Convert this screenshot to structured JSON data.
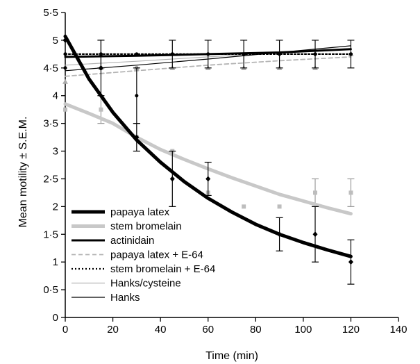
{
  "chart_data": {
    "type": "line",
    "xlabel": "Time (min)",
    "ylabel": "Mean motility ± S.E.M.",
    "xlim": [
      0,
      140
    ],
    "ylim": [
      0,
      5.5
    ],
    "x_ticks": [
      0,
      20,
      40,
      60,
      80,
      100,
      120,
      140
    ],
    "y_ticks": [
      0,
      0.5,
      1,
      1.5,
      2,
      2.5,
      3,
      3.5,
      4,
      4.5,
      5,
      5.5
    ],
    "y_tick_labels": [
      "0",
      "0·5",
      "1",
      "1·5",
      "2",
      "2·5",
      "3",
      "3·5",
      "4",
      "4·5",
      "5",
      "5·5"
    ],
    "x_tick_labels": [
      "0",
      "20",
      "40",
      "60",
      "80",
      "100",
      "120",
      "140"
    ],
    "grid": false,
    "legend_position": "bottom-left",
    "series": [
      {
        "name": "papaya latex",
        "color": "#000000",
        "style": "thick",
        "fit": [
          [
            0,
            5.07
          ],
          [
            10,
            4.3
          ],
          [
            20,
            3.7
          ],
          [
            30,
            3.2
          ],
          [
            40,
            2.8
          ],
          [
            50,
            2.45
          ],
          [
            60,
            2.15
          ],
          [
            70,
            1.9
          ],
          [
            80,
            1.68
          ],
          [
            90,
            1.5
          ],
          [
            100,
            1.35
          ],
          [
            110,
            1.22
          ],
          [
            120,
            1.1
          ]
        ],
        "points": [
          {
            "x": 0,
            "y": 5.0
          },
          {
            "x": 15,
            "y": 4.5,
            "err": 0.5
          },
          {
            "x": 30,
            "y": 3.25,
            "err": 0.25
          },
          {
            "x": 45,
            "y": 2.5,
            "err": 0.5
          },
          {
            "x": 60,
            "y": 2.5,
            "err": 0.3
          },
          {
            "x": 90,
            "y": 1.5,
            "err": 0.3
          },
          {
            "x": 105,
            "y": 1.5,
            "err": 0.5
          },
          {
            "x": 120,
            "y": 1.0,
            "err": 0.4
          }
        ]
      },
      {
        "name": "stem bromelain",
        "color": "#c8c8c8",
        "style": "thick",
        "fit": [
          [
            0,
            3.85
          ],
          [
            10,
            3.68
          ],
          [
            20,
            3.5
          ],
          [
            30,
            3.25
          ],
          [
            40,
            3.03
          ],
          [
            50,
            2.85
          ],
          [
            60,
            2.68
          ],
          [
            70,
            2.52
          ],
          [
            80,
            2.37
          ],
          [
            90,
            2.22
          ],
          [
            100,
            2.1
          ],
          [
            110,
            1.98
          ],
          [
            120,
            1.87
          ]
        ],
        "points": [
          {
            "x": 0,
            "y": 3.75
          },
          {
            "x": 15,
            "y": 3.75,
            "err": 0.25
          },
          {
            "x": 30,
            "y": 3.25,
            "err": 0.25
          },
          {
            "x": 45,
            "y": 3.0
          },
          {
            "x": 60,
            "y": 2.25
          },
          {
            "x": 75,
            "y": 2.0
          },
          {
            "x": 90,
            "y": 2.0
          },
          {
            "x": 105,
            "y": 2.25,
            "err": 0.25
          },
          {
            "x": 120,
            "y": 2.25,
            "err": 0.25
          }
        ]
      },
      {
        "name": "actinidain",
        "color": "#000000",
        "style": "medium",
        "fit": [
          [
            0,
            4.7
          ],
          [
            30,
            4.72
          ],
          [
            60,
            4.75
          ],
          [
            90,
            4.78
          ],
          [
            120,
            4.84
          ]
        ],
        "points": [
          {
            "x": 0,
            "y": 4.75
          },
          {
            "x": 15,
            "y": 4.75,
            "err": 0.25
          },
          {
            "x": 30,
            "y": 4.0,
            "err": 0.5
          },
          {
            "x": 45,
            "y": 4.75,
            "err": 0.25
          },
          {
            "x": 60,
            "y": 4.75,
            "err": 0.25
          },
          {
            "x": 75,
            "y": 4.75,
            "err": 0.25
          },
          {
            "x": 90,
            "y": 4.75,
            "err": 0.25
          },
          {
            "x": 105,
            "y": 4.75,
            "err": 0.25
          },
          {
            "x": 120,
            "y": 4.75,
            "err": 0.25
          }
        ]
      },
      {
        "name": "papaya latex + E-64",
        "color": "#b4b4b4",
        "style": "dashed",
        "fit": [
          [
            0,
            4.35
          ],
          [
            30,
            4.45
          ],
          [
            60,
            4.55
          ],
          [
            90,
            4.63
          ],
          [
            120,
            4.7
          ]
        ],
        "points": [
          {
            "x": 0,
            "y": 4.25
          },
          {
            "x": 15,
            "y": 4.5
          },
          {
            "x": 30,
            "y": 4.5
          },
          {
            "x": 45,
            "y": 4.5
          },
          {
            "x": 60,
            "y": 4.5
          },
          {
            "x": 75,
            "y": 4.5
          },
          {
            "x": 90,
            "y": 4.5
          },
          {
            "x": 105,
            "y": 4.5
          },
          {
            "x": 120,
            "y": 4.75
          }
        ]
      },
      {
        "name": "stem bromelain + E-64",
        "color": "#000000",
        "style": "dotted",
        "fit": [
          [
            0,
            4.75
          ],
          [
            30,
            4.75
          ],
          [
            60,
            4.75
          ],
          [
            90,
            4.75
          ],
          [
            120,
            4.75
          ]
        ],
        "points": [
          {
            "x": 0,
            "y": 4.75
          },
          {
            "x": 15,
            "y": 4.75
          },
          {
            "x": 30,
            "y": 4.75
          },
          {
            "x": 45,
            "y": 4.75
          },
          {
            "x": 60,
            "y": 4.75
          },
          {
            "x": 75,
            "y": 4.75
          },
          {
            "x": 90,
            "y": 4.75
          },
          {
            "x": 105,
            "y": 4.75
          },
          {
            "x": 120,
            "y": 4.75
          }
        ]
      },
      {
        "name": "Hanks/cysteine",
        "color": "#b4b4b4",
        "style": "thin",
        "fit": [
          [
            0,
            4.55
          ],
          [
            30,
            4.62
          ],
          [
            60,
            4.7
          ],
          [
            90,
            4.77
          ],
          [
            120,
            4.85
          ]
        ],
        "points": [
          {
            "x": 0,
            "y": 4.5
          },
          {
            "x": 15,
            "y": 4.75
          },
          {
            "x": 30,
            "y": 4.75
          },
          {
            "x": 45,
            "y": 4.75
          },
          {
            "x": 60,
            "y": 4.75
          },
          {
            "x": 75,
            "y": 4.75
          },
          {
            "x": 90,
            "y": 4.75
          },
          {
            "x": 105,
            "y": 4.75
          },
          {
            "x": 120,
            "y": 4.75
          }
        ]
      },
      {
        "name": "Hanks",
        "color": "#000000",
        "style": "thin",
        "fit": [
          [
            0,
            4.45
          ],
          [
            30,
            4.55
          ],
          [
            60,
            4.66
          ],
          [
            90,
            4.78
          ],
          [
            120,
            4.9
          ]
        ],
        "points": [
          {
            "x": 0,
            "y": 4.5
          },
          {
            "x": 15,
            "y": 4.5
          },
          {
            "x": 30,
            "y": 4.5
          },
          {
            "x": 45,
            "y": 4.75
          },
          {
            "x": 60,
            "y": 4.75
          },
          {
            "x": 75,
            "y": 4.75
          },
          {
            "x": 90,
            "y": 4.75
          },
          {
            "x": 105,
            "y": 4.75
          },
          {
            "x": 120,
            "y": 4.75
          }
        ]
      }
    ]
  }
}
